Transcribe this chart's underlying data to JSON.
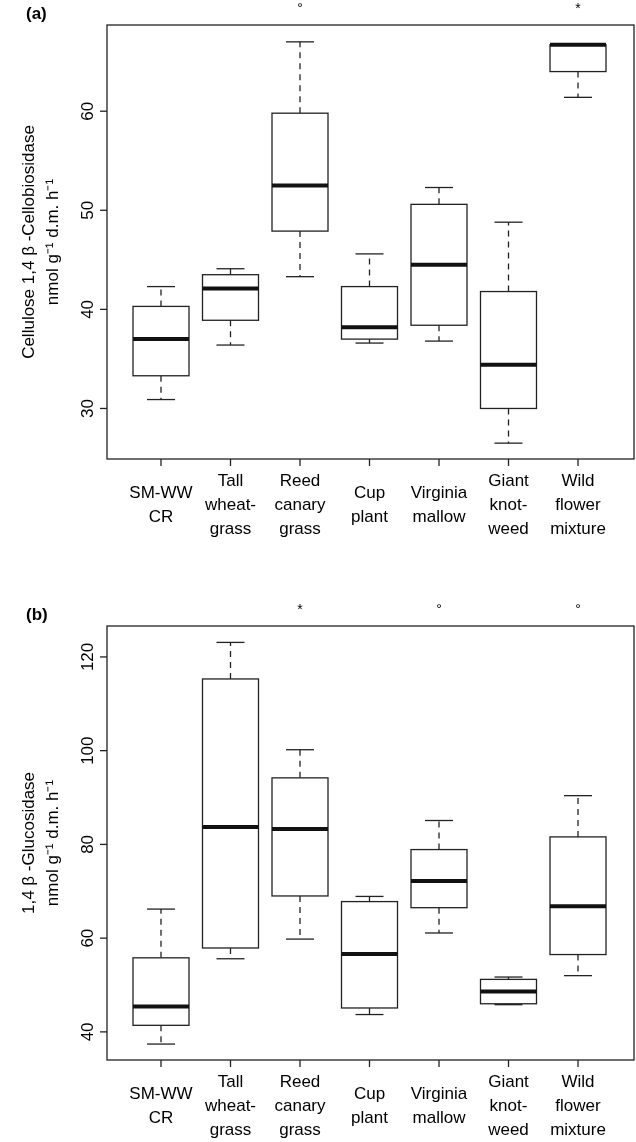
{
  "chart_data": [
    {
      "type": "box",
      "title": "(a)",
      "ylabel": "Cellulose 1,4 β -Cellobiosidase\nnmol g⁻¹ d.m. h⁻¹",
      "categories": [
        "SM-WW\nCR",
        "Tall\nwheat-\ngrass",
        "Reed\ncanary\ngrass",
        "Cup\nplant",
        "Virginia\nmallow",
        "Giant\nknot-\nweed",
        "Wild\nflower\nmixture"
      ],
      "boxes": [
        {
          "low": 30.9,
          "q1": 33.3,
          "median": 37.0,
          "q3": 40.3,
          "high": 42.3
        },
        {
          "low": 36.4,
          "q1": 38.9,
          "median": 42.1,
          "q3": 43.5,
          "high": 44.1
        },
        {
          "low": 43.3,
          "q1": 47.9,
          "median": 52.5,
          "q3": 59.8,
          "high": 67.0
        },
        {
          "low": 36.6,
          "q1": 37.0,
          "median": 38.2,
          "q3": 42.3,
          "high": 45.6
        },
        {
          "low": 36.8,
          "q1": 38.4,
          "median": 44.5,
          "q3": 50.6,
          "high": 52.3
        },
        {
          "low": 26.5,
          "q1": 30.0,
          "median": 34.4,
          "q3": 41.8,
          "high": 48.8
        },
        {
          "low": 61.4,
          "q1": 64.0,
          "median": 66.7,
          "q3": 66.7,
          "high": 66.7
        }
      ],
      "ylim": [
        24.9,
        68.7
      ],
      "yticks": [
        30,
        40,
        50,
        60
      ],
      "grid": false,
      "annotations": [
        "°",
        "*"
      ]
    },
    {
      "type": "box",
      "title": "(b)",
      "ylabel": "1,4 β -Glucosidase\nnmol g⁻¹ d.m. h⁻¹",
      "categories": [
        "SM-WW\nCR",
        "Tall\nwheat-\ngrass",
        "Reed\ncanary\ngrass",
        "Cup\nplant",
        "Virginia\nmallow",
        "Giant\nknot-\nweed",
        "Wild\nflower\nmixture"
      ],
      "boxes": [
        {
          "low": 37.4,
          "q1": 41.4,
          "median": 45.4,
          "q3": 55.8,
          "high": 66.2
        },
        {
          "low": 55.6,
          "q1": 57.9,
          "median": 83.7,
          "q3": 115.3,
          "high": 123.1
        },
        {
          "low": 59.8,
          "q1": 69.0,
          "median": 83.3,
          "q3": 94.2,
          "high": 100.2
        },
        {
          "low": 43.7,
          "q1": 45.1,
          "median": 56.6,
          "q3": 67.8,
          "high": 68.9
        },
        {
          "low": 61.1,
          "q1": 66.5,
          "median": 72.2,
          "q3": 78.9,
          "high": 85.1
        },
        {
          "low": 45.8,
          "q1": 46.0,
          "median": 48.6,
          "q3": 51.2,
          "high": 51.7
        },
        {
          "low": 52.0,
          "q1": 56.5,
          "median": 66.8,
          "q3": 81.6,
          "high": 90.4
        }
      ],
      "ylim": [
        34.0,
        126.6
      ],
      "yticks": [
        40,
        60,
        80,
        100,
        120
      ],
      "grid": false,
      "annotations": [
        "*",
        "°",
        "°"
      ]
    }
  ]
}
